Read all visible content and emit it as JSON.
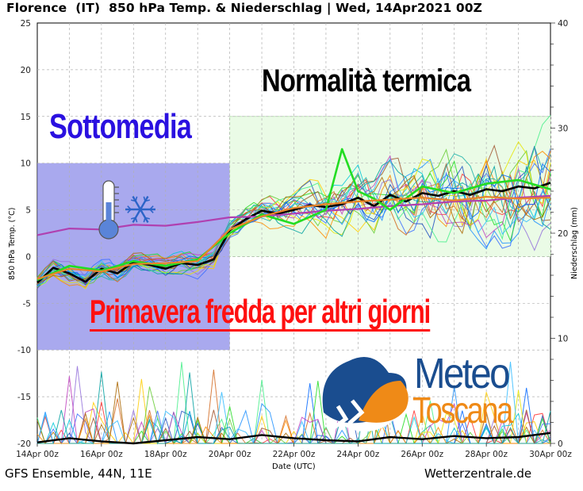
{
  "chart_data": {
    "type": "line",
    "title": "Florence  (IT)  850 hPa Temp. & Niederschlag | Wed, 14Apr2021 00Z",
    "xlabel": "Date (UTC)",
    "ylabel": "850 hPa Temp. (°C)",
    "y2label": "Niederschlag (mm)",
    "categories": [
      "14Apr 00z",
      "16Apr 00z",
      "18Apr 00z",
      "20Apr 00z",
      "22Apr 00z",
      "24Apr 00z",
      "26Apr 00z",
      "28Apr 00z",
      "30Apr 00z"
    ],
    "x_days": [
      14,
      30
    ],
    "ylim": [
      -20,
      25
    ],
    "y2lim": [
      0,
      40
    ],
    "yticks": [
      -20,
      -15,
      -10,
      -5,
      0,
      5,
      10,
      15,
      20,
      25
    ],
    "y2ticks": [
      0,
      10,
      20,
      30,
      40
    ],
    "grid": true,
    "series": [
      {
        "name": "",
        "role": "mean",
        "color": "#000000",
        "x": [
          14,
          14.5,
          15,
          15.5,
          16,
          16.5,
          17,
          17.5,
          18,
          18.5,
          19,
          19.5,
          20,
          20.5,
          21,
          21.5,
          22,
          22.5,
          23,
          23.5,
          24,
          24.5,
          25,
          25.5,
          26,
          26.5,
          27,
          27.5,
          28,
          28.5,
          29,
          29.5,
          30
        ],
        "values": [
          -2.8,
          -1.2,
          -1.8,
          -2.7,
          -1.3,
          -1.8,
          -0.6,
          -0.9,
          -1.3,
          -0.7,
          -0.9,
          -0.3,
          2.8,
          4.0,
          4.9,
          4.6,
          5.0,
          5.5,
          5.3,
          5.6,
          6.3,
          5.4,
          6.6,
          5.9,
          6.8,
          6.5,
          7.0,
          6.6,
          7.2,
          7.0,
          7.5,
          7.3,
          7.9
        ]
      },
      {
        "name": "",
        "role": "climatology",
        "color": "#b040b0",
        "x": [
          14,
          15,
          16,
          17,
          18,
          19,
          20,
          21,
          22,
          23,
          24,
          25,
          26,
          27,
          28,
          29,
          30
        ],
        "values": [
          2.3,
          3.0,
          2.9,
          3.4,
          3.3,
          3.7,
          4.2,
          4.3,
          4.6,
          4.9,
          5.1,
          5.4,
          5.6,
          5.9,
          6.0,
          6.3,
          6.5
        ]
      },
      {
        "name": "",
        "role": "operational",
        "color": "#22dd22",
        "x": [
          14,
          15,
          16,
          17,
          18,
          19,
          20,
          21,
          22,
          23,
          23.5,
          24,
          24.5,
          25,
          26,
          27,
          28,
          29,
          30
        ],
        "values": [
          -2.5,
          -1.0,
          -1.5,
          -0.5,
          -1.0,
          -0.3,
          2.5,
          4.5,
          3.5,
          5.0,
          11.5,
          7.0,
          6.2,
          5.0,
          7.5,
          6.8,
          7.8,
          8.2,
          7.2
        ]
      },
      {
        "name": "",
        "role": "control",
        "color": "#e8842a",
        "x": [
          14,
          15,
          16,
          17,
          18,
          19,
          20,
          21,
          22,
          23,
          24,
          25,
          26,
          27,
          28,
          29,
          30
        ],
        "values": [
          -2.4,
          -1.3,
          -1.6,
          -0.8,
          -0.7,
          -0.5,
          2.9,
          4.3,
          5.2,
          5.6,
          5.9,
          6.1,
          6.3,
          6.0,
          6.4,
          6.2,
          6.3
        ]
      }
    ],
    "precip_mean": {
      "x": [
        14,
        15,
        16,
        17,
        18,
        19,
        20,
        21,
        22,
        23,
        24,
        25,
        26,
        27,
        28,
        29,
        30
      ],
      "values": [
        0.1,
        0.5,
        0.2,
        0.0,
        0.3,
        0.6,
        0.4,
        0.8,
        0.5,
        0.3,
        0.2,
        0.6,
        0.4,
        0.7,
        0.5,
        0.6,
        1.0
      ]
    },
    "annotations": {
      "cold_label": "Sottomedia",
      "normal_label": "Normalità termica",
      "headline": "Primavera fredda per altri giorni",
      "cold_box": {
        "x_start": 14,
        "x_end": 20,
        "y_start": -10,
        "y_end": 10,
        "color": "#8c8ce8"
      },
      "normal_box": {
        "x_start": 20,
        "x_end": 30,
        "y_start": 0,
        "y_end": 15,
        "color": "#eafbe6"
      }
    },
    "logo": {
      "line1": "Meteo",
      "line2": "Toscana",
      "color1": "#1a4d8f",
      "color2": "#ef8a17"
    }
  },
  "footer": {
    "left": "GFS Ensemble, 44N, 11E",
    "right": "Wetterzentrale.de"
  }
}
